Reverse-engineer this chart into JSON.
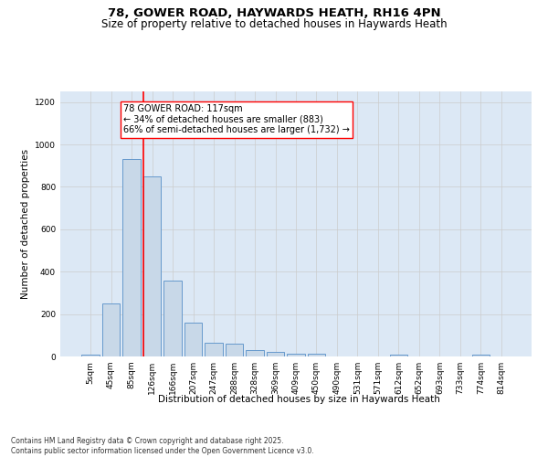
{
  "title": "78, GOWER ROAD, HAYWARDS HEATH, RH16 4PN",
  "subtitle": "Size of property relative to detached houses in Haywards Heath",
  "xlabel": "Distribution of detached houses by size in Haywards Heath",
  "ylabel": "Number of detached properties",
  "categories": [
    "5sqm",
    "45sqm",
    "85sqm",
    "126sqm",
    "166sqm",
    "207sqm",
    "247sqm",
    "288sqm",
    "328sqm",
    "369sqm",
    "409sqm",
    "450sqm",
    "490sqm",
    "531sqm",
    "571sqm",
    "612sqm",
    "652sqm",
    "693sqm",
    "733sqm",
    "774sqm",
    "814sqm"
  ],
  "values": [
    8,
    248,
    930,
    848,
    358,
    158,
    65,
    62,
    30,
    20,
    13,
    12,
    0,
    0,
    0,
    10,
    0,
    0,
    0,
    10,
    0
  ],
  "bar_color": "#c8d8e8",
  "bar_edge_color": "#6699cc",
  "bar_linewidth": 0.7,
  "vline_x_index": 3,
  "vline_color": "red",
  "vline_linewidth": 1.2,
  "annotation_text": "78 GOWER ROAD: 117sqm\n← 34% of detached houses are smaller (883)\n66% of semi-detached houses are larger (1,732) →",
  "annotation_box_color": "white",
  "annotation_box_edge": "red",
  "ylim": [
    0,
    1250
  ],
  "yticks": [
    0,
    200,
    400,
    600,
    800,
    1000,
    1200
  ],
  "grid_color": "#cccccc",
  "background_color": "#dce8f5",
  "footer_text": "Contains HM Land Registry data © Crown copyright and database right 2025.\nContains public sector information licensed under the Open Government Licence v3.0.",
  "title_fontsize": 9.5,
  "subtitle_fontsize": 8.5,
  "axis_label_fontsize": 7.5,
  "tick_fontsize": 6.5,
  "annotation_fontsize": 7.0,
  "footer_fontsize": 5.5
}
